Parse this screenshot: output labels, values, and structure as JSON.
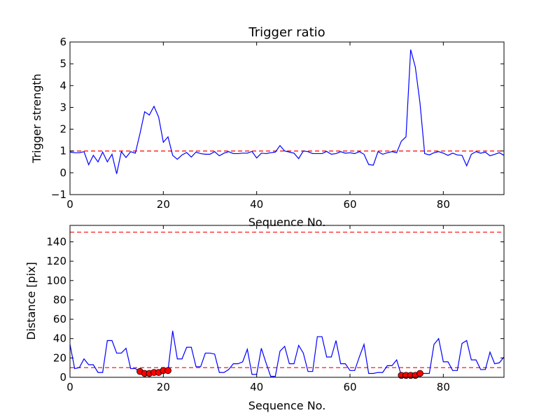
{
  "chart_data": [
    {
      "type": "line",
      "title": "Trigger ratio",
      "xlabel": "Sequence No.",
      "ylabel": "Trigger strength",
      "xlim": [
        0,
        93
      ],
      "ylim": [
        -1,
        6
      ],
      "xticks": [
        0,
        20,
        40,
        60,
        80
      ],
      "yticks": [
        -1,
        0,
        1,
        2,
        3,
        4,
        5,
        6
      ],
      "grid": false,
      "line_color": "#0000ff",
      "threshold_color": "#ff0000",
      "thresholds": [
        1
      ],
      "series": [
        {
          "x": [
            0,
            1,
            2,
            3,
            4,
            5,
            6,
            7,
            8,
            9,
            10,
            11,
            12,
            13,
            14,
            15,
            16,
            17,
            18,
            19,
            20,
            21,
            22,
            23,
            24,
            25,
            26,
            27,
            28,
            29,
            30,
            31,
            32,
            33,
            34,
            35,
            36,
            37,
            38,
            39,
            40,
            41,
            42,
            43,
            44,
            45,
            46,
            47,
            48,
            49,
            50,
            51,
            52,
            53,
            54,
            55,
            56,
            57,
            58,
            59,
            60,
            61,
            62,
            63,
            64,
            65,
            66,
            67,
            68,
            69,
            70,
            71,
            72,
            73,
            74,
            75,
            76,
            77,
            78,
            79,
            80,
            81,
            82,
            83,
            84,
            85,
            86,
            87,
            88,
            89,
            90,
            91,
            92,
            93
          ],
          "y": [
            0.95,
            0.92,
            0.92,
            0.97,
            0.37,
            0.8,
            0.5,
            0.95,
            0.5,
            0.85,
            -0.05,
            0.97,
            0.7,
            0.97,
            0.9,
            1.8,
            2.8,
            2.65,
            3.05,
            2.55,
            1.4,
            1.65,
            0.8,
            0.62,
            0.82,
            0.93,
            0.72,
            0.95,
            0.88,
            0.85,
            0.85,
            0.97,
            0.78,
            0.9,
            0.97,
            0.88,
            0.88,
            0.9,
            0.9,
            0.98,
            0.68,
            0.9,
            0.88,
            0.92,
            0.95,
            1.25,
            1.0,
            0.95,
            0.9,
            0.65,
            1.0,
            0.97,
            0.88,
            0.88,
            0.88,
            0.98,
            0.85,
            0.88,
            0.97,
            0.9,
            0.92,
            0.88,
            0.97,
            0.85,
            0.38,
            0.35,
            0.97,
            0.85,
            0.92,
            0.97,
            0.92,
            1.45,
            1.65,
            5.65,
            4.85,
            3.2,
            0.88,
            0.82,
            0.92,
            0.97,
            0.9,
            0.8,
            0.9,
            0.82,
            0.8,
            0.32,
            0.85,
            0.97,
            0.9,
            0.95,
            0.78,
            0.85,
            0.92,
            0.8
          ]
        }
      ]
    },
    {
      "type": "line",
      "title": "",
      "xlabel": "Sequence No.",
      "ylabel": "Distance [pix]",
      "xlim": [
        0,
        93
      ],
      "ylim": [
        0,
        157
      ],
      "xticks": [
        0,
        20,
        40,
        60,
        80
      ],
      "yticks": [
        0,
        20,
        40,
        60,
        80,
        100,
        120,
        140
      ],
      "grid": false,
      "line_color": "#0000ff",
      "threshold_color": "#ff0000",
      "marker_color": "#ff0000",
      "thresholds": [
        10,
        150
      ],
      "series": [
        {
          "x": [
            0,
            1,
            2,
            3,
            4,
            5,
            6,
            7,
            8,
            9,
            10,
            11,
            12,
            13,
            14,
            15,
            16,
            17,
            18,
            19,
            20,
            21,
            22,
            23,
            24,
            25,
            26,
            27,
            28,
            29,
            30,
            31,
            32,
            33,
            34,
            35,
            36,
            37,
            38,
            39,
            40,
            41,
            42,
            43,
            44,
            45,
            46,
            47,
            48,
            49,
            50,
            51,
            52,
            53,
            54,
            55,
            56,
            57,
            58,
            59,
            60,
            61,
            62,
            63,
            64,
            65,
            66,
            67,
            68,
            69,
            70,
            71,
            72,
            73,
            74,
            75,
            76,
            77,
            78,
            79,
            80,
            81,
            82,
            83,
            84,
            85,
            86,
            87,
            88,
            89,
            90,
            91,
            92,
            93
          ],
          "y": [
            34,
            9,
            10,
            19,
            13,
            13,
            5,
            5,
            38,
            38,
            25,
            25,
            30,
            9,
            9,
            6,
            4,
            4,
            5,
            5,
            7,
            7,
            48,
            19,
            19,
            31,
            31,
            11,
            11,
            25,
            25,
            24,
            5,
            5,
            8,
            14,
            14,
            16,
            29,
            3,
            3,
            30,
            15,
            1,
            1,
            27,
            32,
            14,
            14,
            33,
            25,
            6,
            6,
            42,
            42,
            21,
            21,
            38,
            14,
            14,
            7,
            7,
            21,
            34,
            4,
            4,
            5,
            5,
            12,
            12,
            18,
            2,
            2,
            2,
            2,
            4,
            4,
            4,
            34,
            40,
            16,
            16,
            7,
            7,
            35,
            38,
            18,
            18,
            8,
            8,
            26,
            14,
            15,
            21
          ]
        },
        {
          "name": "",
          "markers": true,
          "x": [
            15,
            16,
            17,
            18,
            19,
            20,
            21,
            71,
            72,
            73,
            74,
            75
          ],
          "y": [
            6,
            4,
            4,
            5,
            5,
            7,
            7,
            2,
            2,
            2,
            2,
            4
          ]
        }
      ]
    }
  ]
}
